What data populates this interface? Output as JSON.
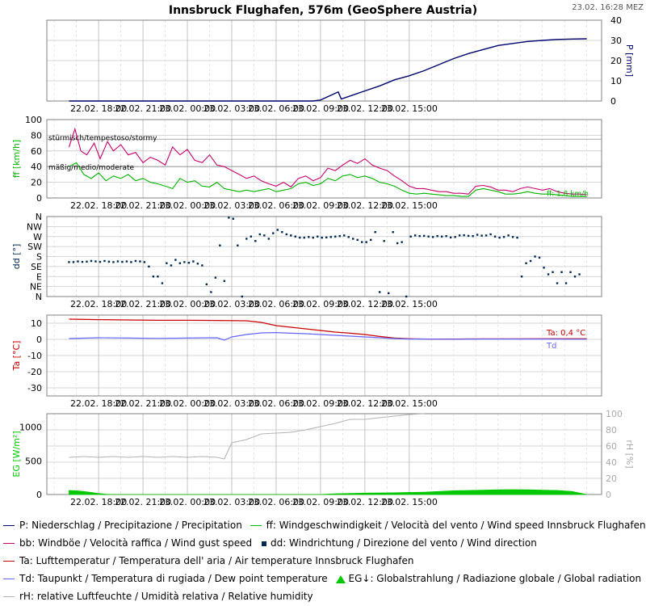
{
  "header": {
    "title": "Innsbruck Flughafen, 576m (GeoSphere Austria)",
    "timestamp": "23.02. 16:28 MEZ"
  },
  "x_ticks": [
    "22.02. 18:00",
    "22.02. 21:00",
    "23.02. 00:00",
    "23.02. 03:00",
    "23.02. 06:00",
    "23.02. 09:00",
    "23.02. 12:00",
    "23.02. 15:00"
  ],
  "colors": {
    "precip": "#00006e",
    "wind_speed": "#00b400",
    "gust": "#c8006e",
    "direction": "#002850",
    "temp": "#c80000",
    "dew": "#6464ff",
    "radiation": "#00c800",
    "humidity": "#b4b4b4",
    "grid": "#c8c8c8",
    "frame": "#808080"
  },
  "chart_data": [
    {
      "type": "line",
      "panel": "precipitation",
      "ylabel": "P [mm]",
      "yaxis_side": "right",
      "ylim": [
        0,
        40
      ],
      "yticks": [
        0,
        10,
        20,
        30,
        40
      ],
      "x_unit": "hours since 22.02. 16:00",
      "series": [
        {
          "name": "P: Niederschlag / Precipitazione / Precipitation",
          "color_key": "precip",
          "x": [
            0,
            16.5,
            17,
            18.2,
            18.4,
            19,
            20,
            21,
            22,
            23,
            24,
            25,
            26,
            27,
            28,
            29,
            30,
            31,
            32,
            33,
            34,
            35
          ],
          "y": [
            0,
            0,
            0.5,
            4.5,
            1,
            2.5,
            5,
            7.5,
            10.5,
            12.5,
            15,
            18,
            21,
            23.5,
            25.5,
            27.5,
            28.5,
            29.5,
            30,
            30.5,
            30.7,
            30.8
          ]
        }
      ]
    },
    {
      "type": "line",
      "panel": "wind",
      "ylabel": "ff [km/h]",
      "ylim": [
        0,
        100
      ],
      "yticks": [
        0,
        20,
        40,
        60,
        80,
        100
      ],
      "threshold_labels": [
        "stürmisch/tempestoso/stormy",
        "mäßig/medio/moderate"
      ],
      "thresholds": [
        75,
        40
      ],
      "end_label": "ff: 1,8 km/h",
      "x_unit": "hours since 22.02. 16:00",
      "series": [
        {
          "name": "bb: Windböe / Velocità raffica / Wind gust speed",
          "color_key": "gust",
          "x": [
            0,
            0.4,
            0.8,
            1.2,
            1.7,
            2.1,
            2.6,
            3,
            3.5,
            4,
            4.5,
            5,
            5.5,
            6,
            6.5,
            7,
            7.5,
            8,
            8.5,
            9,
            9.5,
            10,
            10.5,
            11,
            11.5,
            12,
            12.5,
            13,
            13.5,
            14,
            14.5,
            15,
            15.5,
            16,
            16.5,
            17,
            17.5,
            18,
            18.5,
            19,
            19.5,
            20,
            20.5,
            21,
            21.5,
            22,
            22.5,
            23,
            23.5,
            24,
            24.5,
            25,
            25.5,
            26,
            26.5,
            27,
            27.5,
            28,
            28.5,
            29,
            29.5,
            30,
            30.5,
            31,
            31.5,
            32,
            32.5,
            33,
            33.5,
            34,
            34.5,
            35
          ],
          "y": [
            65,
            88,
            60,
            55,
            70,
            50,
            72,
            60,
            68,
            55,
            58,
            45,
            52,
            48,
            42,
            65,
            55,
            62,
            48,
            45,
            55,
            42,
            40,
            35,
            30,
            25,
            28,
            22,
            18,
            15,
            20,
            14,
            25,
            28,
            22,
            26,
            38,
            35,
            42,
            48,
            44,
            50,
            42,
            38,
            35,
            28,
            22,
            15,
            12,
            12,
            10,
            8,
            8,
            6,
            6,
            5,
            15,
            16,
            14,
            10,
            10,
            8,
            12,
            14,
            12,
            10,
            12,
            8,
            6,
            5,
            5,
            4
          ]
        },
        {
          "name": "ff: Windgeschwindigkeit / Velocità del vento / Wind speed  Innsbruck Flughafen",
          "color_key": "wind_speed",
          "x": [
            0,
            0.5,
            1,
            1.5,
            2,
            2.5,
            3,
            3.5,
            4,
            4.5,
            5,
            5.5,
            6,
            6.5,
            7,
            7.5,
            8,
            8.5,
            9,
            9.5,
            10,
            10.5,
            11,
            11.5,
            12,
            12.5,
            13,
            13.5,
            14,
            14.5,
            15,
            15.5,
            16,
            16.5,
            17,
            17.5,
            18,
            18.5,
            19,
            19.5,
            20,
            20.5,
            21,
            21.5,
            22,
            22.5,
            23,
            23.5,
            24,
            24.5,
            25,
            25.5,
            26,
            26.5,
            27,
            27.5,
            28,
            28.5,
            29,
            29.5,
            30,
            30.5,
            31,
            31.5,
            32,
            32.5,
            33,
            33.5,
            34,
            34.5,
            35
          ],
          "y": [
            40,
            45,
            30,
            25,
            32,
            22,
            28,
            25,
            30,
            22,
            25,
            20,
            18,
            15,
            12,
            25,
            20,
            22,
            15,
            14,
            20,
            12,
            10,
            8,
            10,
            8,
            10,
            12,
            8,
            10,
            12,
            18,
            20,
            16,
            18,
            25,
            22,
            28,
            30,
            26,
            28,
            25,
            20,
            18,
            15,
            10,
            6,
            5,
            6,
            5,
            4,
            3,
            3,
            2,
            2,
            10,
            12,
            10,
            8,
            5,
            5,
            6,
            8,
            6,
            5,
            5,
            4,
            3,
            2,
            2,
            1.8
          ]
        }
      ]
    },
    {
      "type": "scatter",
      "panel": "direction",
      "ylabel": "dd [°]",
      "yticks": [
        "N",
        "NE",
        "E",
        "SE",
        "S",
        "SW",
        "W",
        "NW",
        "N"
      ],
      "ylim": [
        0,
        360
      ],
      "x_unit": "hours since 22.02. 16:00",
      "series": [
        {
          "name": "dd: Windrichtung / Direzione del vento / Wind direction",
          "color_key": "direction",
          "x": [
            0,
            0.3,
            0.6,
            0.9,
            1.2,
            1.5,
            1.8,
            2.1,
            2.4,
            2.7,
            3,
            3.3,
            3.6,
            3.9,
            4.2,
            4.5,
            4.8,
            5.1,
            5.4,
            5.7,
            6,
            6.3,
            6.6,
            6.9,
            7.2,
            7.5,
            7.8,
            8.1,
            8.4,
            8.7,
            9,
            9.3,
            9.6,
            9.9,
            10.2,
            10.5,
            10.8,
            11.1,
            11.4,
            11.7,
            12,
            12.3,
            12.6,
            12.9,
            13.2,
            13.5,
            13.8,
            14.1,
            14.4,
            14.7,
            15,
            15.3,
            15.6,
            15.9,
            16.2,
            16.5,
            16.8,
            17.1,
            17.4,
            17.7,
            18,
            18.3,
            18.6,
            18.9,
            19.2,
            19.5,
            19.8,
            20.1,
            20.4,
            20.7,
            21,
            21.3,
            21.6,
            21.9,
            22.2,
            22.5,
            22.8,
            23.1,
            23.4,
            23.7,
            24,
            24.3,
            24.6,
            24.9,
            25.2,
            25.5,
            25.8,
            26.1,
            26.4,
            26.7,
            27,
            27.3,
            27.6,
            27.9,
            28.2,
            28.5,
            28.8,
            29.1,
            29.4,
            29.7,
            30,
            30.3,
            30.6,
            30.9,
            31.2,
            31.5,
            31.8,
            32.1,
            32.4,
            32.7,
            33,
            33.3,
            33.6,
            33.9,
            34.2,
            34.5
          ],
          "y": [
            155,
            155,
            158,
            156,
            157,
            160,
            158,
            156,
            160,
            157,
            155,
            158,
            156,
            158,
            155,
            160,
            158,
            155,
            135,
            90,
            90,
            60,
            150,
            140,
            165,
            150,
            155,
            152,
            158,
            148,
            140,
            55,
            20,
            85,
            230,
            70,
            355,
            350,
            230,
            0,
            260,
            270,
            250,
            280,
            275,
            260,
            285,
            300,
            290,
            280,
            275,
            270,
            265,
            265,
            268,
            265,
            270,
            265,
            266,
            268,
            270,
            272,
            275,
            268,
            260,
            255,
            245,
            245,
            255,
            290,
            20,
            250,
            15,
            290,
            240,
            245,
            0,
            270,
            275,
            272,
            273,
            270,
            268,
            272,
            270,
            272,
            266,
            268,
            275,
            276,
            273,
            272,
            278,
            274,
            275,
            280,
            270,
            265,
            268,
            275,
            268,
            265,
            90,
            150,
            160,
            180,
            175,
            130,
            100,
            110,
            60,
            110,
            60,
            110,
            90,
            100
          ]
        }
      ]
    },
    {
      "type": "line",
      "panel": "temperature",
      "ylabel": "Ta [°C]",
      "ylim": [
        -35,
        15
      ],
      "yticks": [
        -30,
        -20,
        -10,
        0,
        10
      ],
      "end_labels": [
        "Ta: 0,4 °C",
        "Td"
      ],
      "x_unit": "hours since 22.02. 16:00",
      "series": [
        {
          "name": "Ta: Lufttemperatur / Temperatura dell' aria / Air temperature  Innsbruck Flughafen",
          "color_key": "temp",
          "x": [
            0,
            2,
            4,
            6,
            8,
            10,
            12,
            13,
            14,
            15,
            16,
            17,
            18,
            19,
            20,
            21,
            22,
            23,
            24,
            26,
            28,
            30,
            32,
            34,
            35
          ],
          "y": [
            12.5,
            12.2,
            12,
            11.8,
            11.8,
            11.7,
            11.5,
            10.5,
            8.5,
            7.5,
            6.5,
            5.5,
            4.5,
            3.8,
            3,
            1.8,
            0.8,
            0.4,
            0.2,
            0.2,
            0.3,
            0.3,
            0.4,
            0.4,
            0.4
          ]
        },
        {
          "name": "Td: Taupunkt / Temperatura di rugiada / Dew point temperature",
          "color_key": "dew",
          "x": [
            0,
            2,
            4,
            6,
            8,
            10,
            10.5,
            11,
            12,
            13,
            14,
            15,
            16,
            17,
            18,
            19,
            20,
            21,
            22,
            23,
            24,
            26,
            28,
            30,
            32,
            34,
            35
          ],
          "y": [
            0.5,
            1,
            0.8,
            0.6,
            0.8,
            1,
            -0.5,
            1.5,
            3,
            4,
            4.2,
            3.8,
            3.5,
            3,
            2.5,
            2,
            1.5,
            1,
            0.5,
            0.2,
            0.2,
            0.1,
            0.2,
            0.2,
            0.2,
            0.1,
            0.1
          ]
        }
      ]
    },
    {
      "type": "area",
      "panel": "radiation",
      "ylabel": "EG [W/m²]",
      "ylim": [
        0,
        1200
      ],
      "yticks": [
        0,
        500,
        1000
      ],
      "ylabel_right": "rH [%]",
      "ylim_right": [
        0,
        100
      ],
      "yticks_right": [
        0,
        20,
        40,
        60,
        80,
        100
      ],
      "x_unit": "hours since 22.02. 16:00",
      "series": [
        {
          "name": "EG↓: Globalstrahlung / Radiazione globale / Global radiation",
          "color_key": "radiation",
          "x": [
            0,
            0.5,
            1,
            1.5,
            2,
            2.5,
            3,
            17,
            18,
            20,
            22,
            24,
            25,
            26,
            27,
            28,
            29,
            30,
            31,
            32,
            33,
            34,
            35
          ],
          "y": [
            60,
            55,
            45,
            30,
            15,
            5,
            0,
            0,
            10,
            20,
            25,
            35,
            45,
            55,
            60,
            65,
            70,
            72,
            70,
            65,
            60,
            45,
            0
          ]
        },
        {
          "name": "rH: relative Luftfeuchte / Umidità relativa / Relative humidity",
          "color_key": "humidity",
          "x": [
            0,
            1,
            2,
            3,
            4,
            5,
            6,
            7,
            8,
            9,
            10,
            10.5,
            11,
            12,
            13,
            14,
            15,
            16,
            17,
            18,
            19,
            20,
            21,
            22,
            23,
            24
          ],
          "y": [
            46,
            47,
            46,
            47,
            46,
            47,
            46,
            47,
            46,
            47,
            46,
            44,
            64,
            68,
            75,
            76,
            77,
            80,
            84,
            88,
            93,
            93,
            95,
            97,
            99,
            100
          ]
        }
      ]
    }
  ],
  "legend": {
    "row1": [
      "P: Niederschlag / Precipitazione / Precipitation",
      "ff: Windgeschwindigkeit / Velocità del vento / Wind speed  Innsbruck Flughafen"
    ],
    "row2": [
      "bb: Windböe / Velocità raffica / Wind gust speed",
      "dd: Windrichtung / Direzione del vento / Wind direction"
    ],
    "row3": [
      "Ta: Lufttemperatur / Temperatura dell' aria / Air temperature  Innsbruck Flughafen"
    ],
    "row4": [
      "Td: Taupunkt / Temperatura di rugiada / Dew point temperature",
      "EG↓: Globalstrahlung / Radiazione globale / Global radiation"
    ],
    "row5": [
      "rH: relative Luftfeuchte / Umidità relativa / Relative humidity"
    ]
  }
}
